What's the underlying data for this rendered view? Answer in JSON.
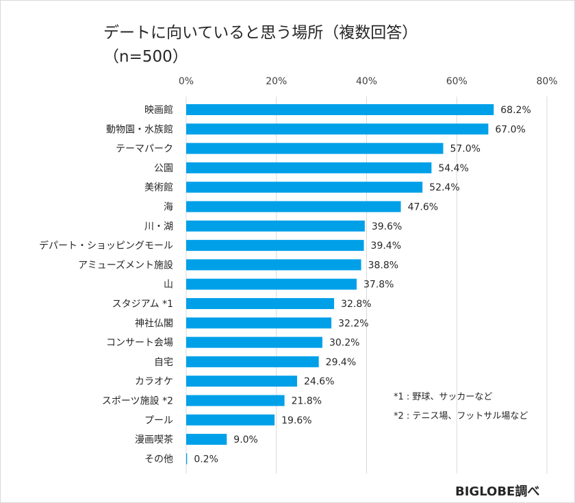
{
  "chart_data": {
    "type": "bar",
    "orientation": "horizontal",
    "title": "デートに向いていると思う場所（複数回答）",
    "subtitle": "（n=500）",
    "categories": [
      "映画館",
      "動物園・水族館",
      "テーマパーク",
      "公園",
      "美術館",
      "海",
      "川・湖",
      "デパート・ショッピングモール",
      "アミューズメント施設",
      "山",
      "スタジアム *1",
      "神社仏閣",
      "コンサート会場",
      "自宅",
      "カラオケ",
      "スポーツ施設 *2",
      "プール",
      "漫画喫茶",
      "その他"
    ],
    "values": [
      68.2,
      67.0,
      57.0,
      54.4,
      52.4,
      47.6,
      39.6,
      39.4,
      38.8,
      37.8,
      32.8,
      32.2,
      30.2,
      29.4,
      24.6,
      21.8,
      19.6,
      9.0,
      0.2
    ],
    "data_labels": [
      "68.2%",
      "67.0%",
      "57.0%",
      "54.4%",
      "52.4%",
      "47.6%",
      "39.6%",
      "39.4%",
      "38.8%",
      "37.8%",
      "32.8%",
      "32.2%",
      "30.2%",
      "29.4%",
      "24.6%",
      "21.8%",
      "19.6%",
      "9.0%",
      "0.2%"
    ],
    "xlim": [
      0,
      80
    ],
    "xticks": [
      0,
      20,
      40,
      60,
      80
    ],
    "xtick_labels": [
      "0%",
      "20%",
      "40%",
      "60%",
      "80%"
    ],
    "axis_position": "top",
    "grid": true,
    "bar_color": "#00a0e9",
    "notes": [
      "*1 : 野球、サッカーなど",
      "*2 : テニス場、フットサル場など"
    ],
    "source": "BIGLOBE調べ"
  }
}
